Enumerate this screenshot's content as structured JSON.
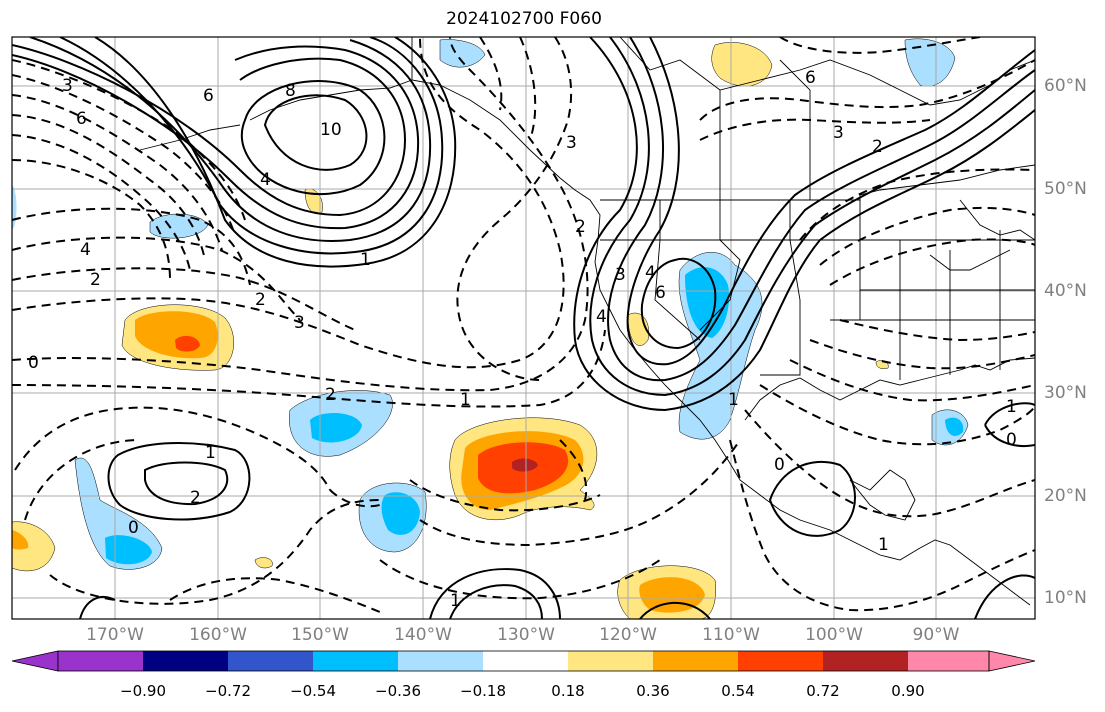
{
  "title": "2024102700 F060",
  "latitude_labels": [
    "60°N",
    "50°N",
    "40°N",
    "30°N",
    "20°N",
    "10°N"
  ],
  "longitude_labels": [
    "170°W",
    "160°W",
    "150°W",
    "140°W",
    "130°W",
    "120°W",
    "110°W",
    "100°W",
    "90°W"
  ],
  "colorbar": {
    "ticks": [
      "−0.90",
      "−0.72",
      "−0.54",
      "−0.36",
      "−0.18",
      "0.18",
      "0.36",
      "0.54",
      "0.72",
      "0.90"
    ],
    "colors": [
      "#9933cc",
      "#000080",
      "#3355cc",
      "#00bfff",
      "#aadfff",
      "#ffffff",
      "#ffe680",
      "#ffa500",
      "#ff4000",
      "#b22222",
      "#ff88aa"
    ]
  },
  "contour_labels": [
    {
      "text": "6"
    },
    {
      "text": "3"
    },
    {
      "text": "6"
    },
    {
      "text": "8"
    },
    {
      "text": "10"
    },
    {
      "text": "4"
    },
    {
      "text": "4"
    },
    {
      "text": "2"
    },
    {
      "text": "1"
    },
    {
      "text": "2"
    },
    {
      "text": "3"
    },
    {
      "text": "0"
    },
    {
      "text": "3"
    },
    {
      "text": "6"
    },
    {
      "text": "3"
    },
    {
      "text": "2"
    },
    {
      "text": "4"
    },
    {
      "text": "6"
    },
    {
      "text": "3"
    },
    {
      "text": "4"
    },
    {
      "text": "2"
    },
    {
      "text": "1"
    },
    {
      "text": "2"
    },
    {
      "text": "1"
    },
    {
      "text": "2"
    },
    {
      "text": "0"
    },
    {
      "text": "0"
    },
    {
      "text": "1"
    },
    {
      "text": "1"
    },
    {
      "text": "1"
    },
    {
      "text": "0"
    },
    {
      "text": "1"
    }
  ]
}
